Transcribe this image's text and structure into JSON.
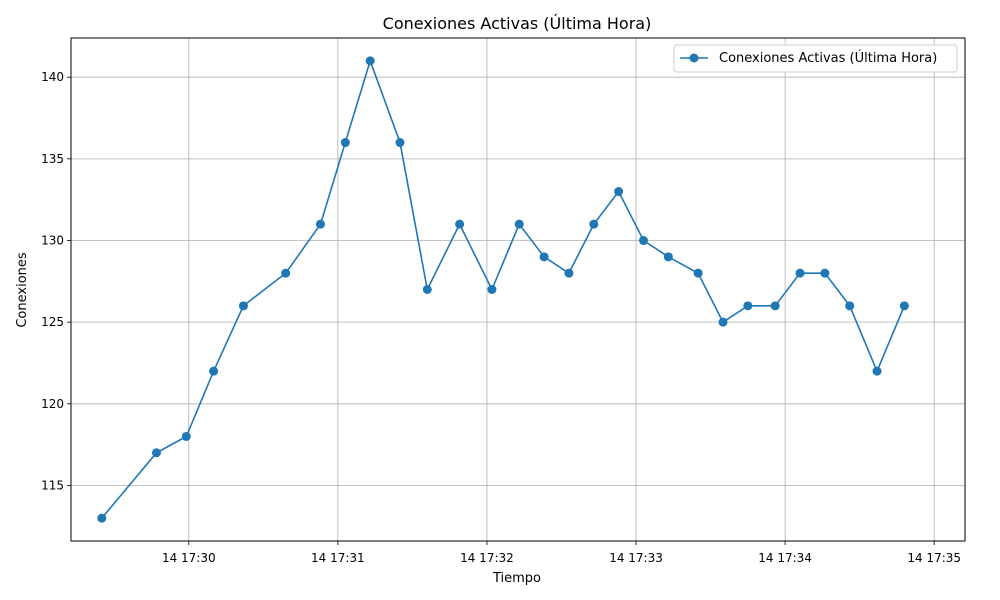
{
  "chart_data": {
    "type": "line",
    "title": "Conexiones Activas (Última Hora)",
    "xlabel": "Tiempo",
    "ylabel": "Conexiones",
    "grid": true,
    "legend_position": "top-right",
    "color": "#1f77b4",
    "x_ticks": [
      {
        "t": 1800,
        "label": "14 17:30"
      },
      {
        "t": 1860,
        "label": "14 17:31"
      },
      {
        "t": 1920,
        "label": "14 17:32"
      },
      {
        "t": 1980,
        "label": "14 17:33"
      },
      {
        "t": 2040,
        "label": "14 17:34"
      },
      {
        "t": 2100,
        "label": "14 17:35"
      }
    ],
    "y_ticks": [
      115,
      120,
      125,
      130,
      135,
      140
    ],
    "series": [
      {
        "name": "Conexiones Activas (Última Hora)",
        "points": [
          {
            "t": 1765,
            "y": 113
          },
          {
            "t": 1787,
            "y": 117
          },
          {
            "t": 1799,
            "y": 118
          },
          {
            "t": 1810,
            "y": 122
          },
          {
            "t": 1822,
            "y": 126
          },
          {
            "t": 1839,
            "y": 128
          },
          {
            "t": 1853,
            "y": 131
          },
          {
            "t": 1863,
            "y": 136
          },
          {
            "t": 1873,
            "y": 141
          },
          {
            "t": 1885,
            "y": 136
          },
          {
            "t": 1896,
            "y": 127
          },
          {
            "t": 1909,
            "y": 131
          },
          {
            "t": 1922,
            "y": 127
          },
          {
            "t": 1933,
            "y": 131
          },
          {
            "t": 1943,
            "y": 129
          },
          {
            "t": 1953,
            "y": 128
          },
          {
            "t": 1963,
            "y": 131
          },
          {
            "t": 1973,
            "y": 133
          },
          {
            "t": 1983,
            "y": 130
          },
          {
            "t": 1993,
            "y": 129
          },
          {
            "t": 2005,
            "y": 128
          },
          {
            "t": 2015,
            "y": 125
          },
          {
            "t": 2025,
            "y": 126
          },
          {
            "t": 2036,
            "y": 126
          },
          {
            "t": 2046,
            "y": 128
          },
          {
            "t": 2056,
            "y": 128
          },
          {
            "t": 2066,
            "y": 126
          },
          {
            "t": 2077,
            "y": 122
          },
          {
            "t": 2088,
            "y": 126
          }
        ]
      }
    ]
  }
}
